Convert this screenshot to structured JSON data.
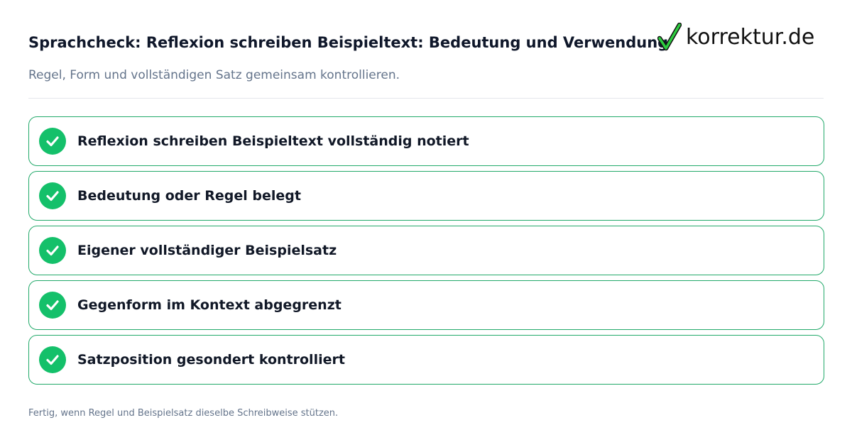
{
  "header": {
    "title": "Sprachcheck: Reflexion schreiben Beispieltext: Bedeutung und Verwendung",
    "subtitle": "Regel, Form und vollständigen Satz gemeinsam kontrollieren."
  },
  "brand": {
    "name": "korrektur.de",
    "icon": "checkmark-logo-icon",
    "check_color": "#2ecc40"
  },
  "checklist": {
    "icon": "check-circle-icon",
    "accent_color": "#14c06a",
    "border_color": "#22a96a",
    "items": [
      {
        "label": "Reflexion schreiben Beispieltext vollständig notiert"
      },
      {
        "label": "Bedeutung oder Regel belegt"
      },
      {
        "label": "Eigener vollständiger Beispielsatz"
      },
      {
        "label": "Gegenform im Kontext abgegrenzt"
      },
      {
        "label": "Satzposition gesondert kontrolliert"
      }
    ]
  },
  "footer": {
    "note": "Fertig, wenn Regel und Beispielsatz dieselbe Schreibweise stützen."
  }
}
